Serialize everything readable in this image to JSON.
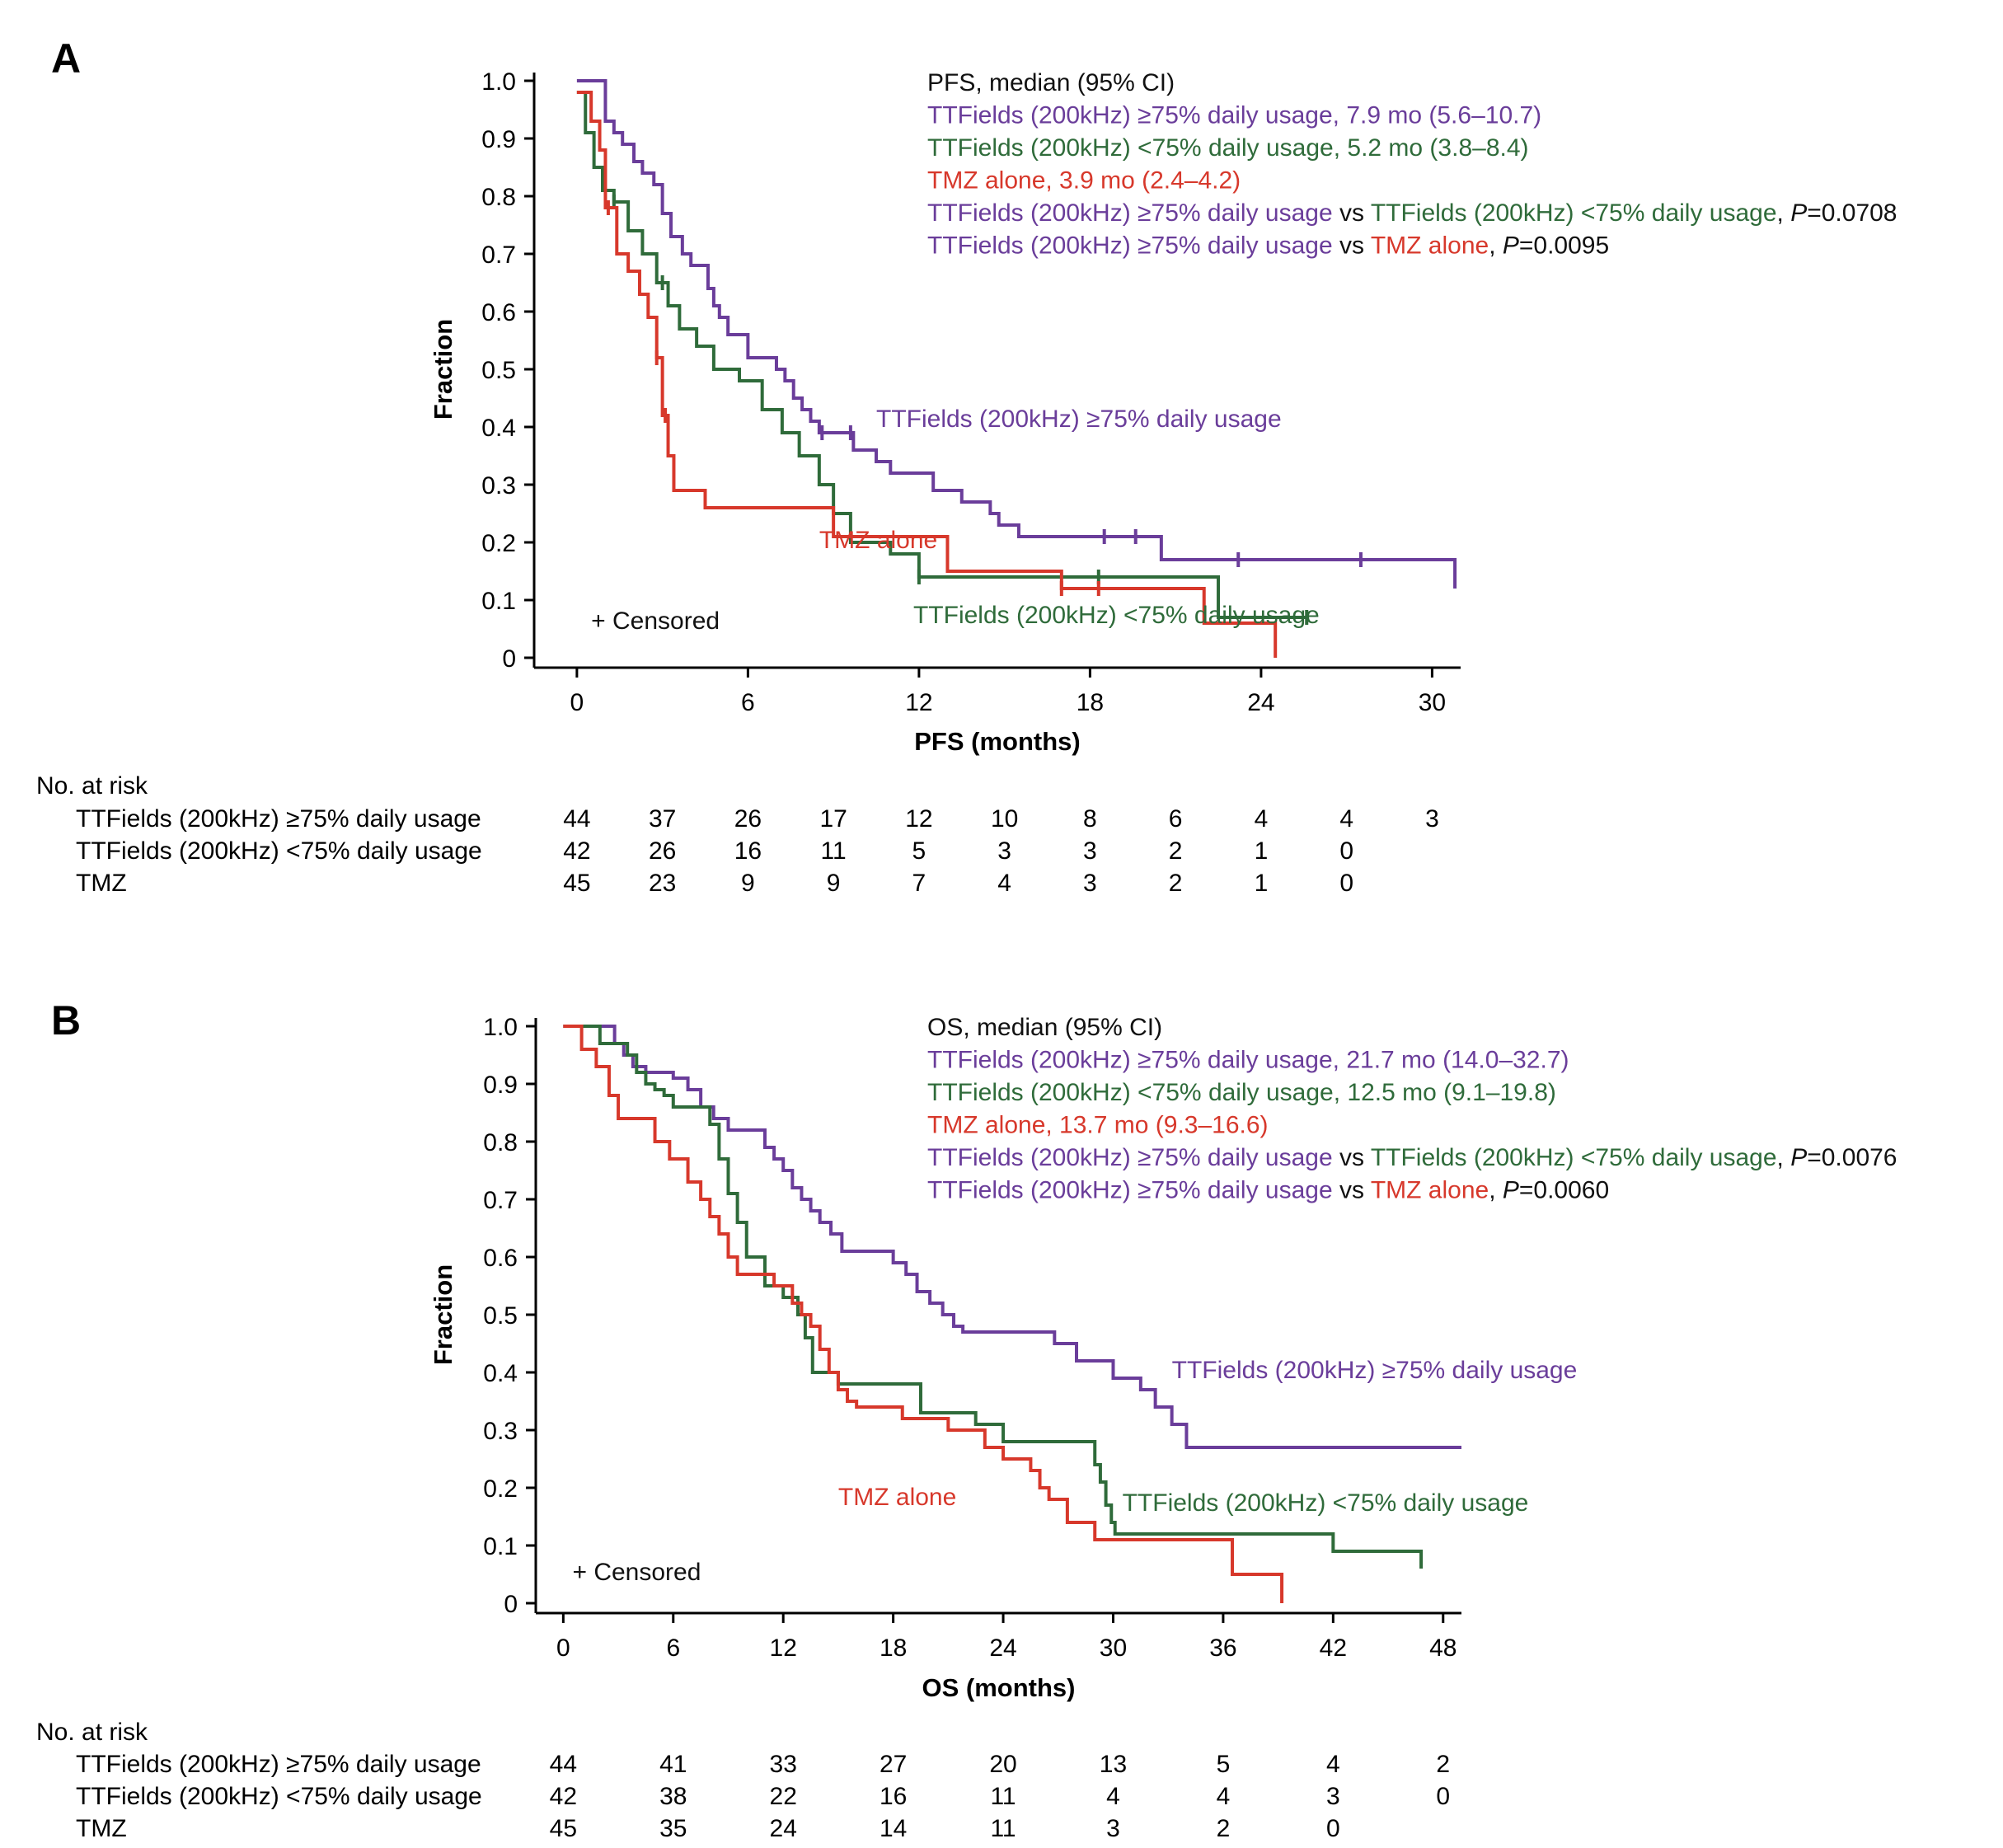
{
  "colors": {
    "purple": "#6a3d9a",
    "green": "#2f6b3a",
    "red": "#d7382b",
    "black": "#111111"
  },
  "chart_data": [
    {
      "panel": "A",
      "type": "line",
      "step": true,
      "xlabel": "PFS (months)",
      "ylabel": "Fraction",
      "xlim": [
        -1.5,
        31
      ],
      "ylim": [
        0,
        1.0
      ],
      "xticks": [
        0,
        6,
        12,
        18,
        24,
        30
      ],
      "yticks": [
        0,
        0.1,
        0.2,
        0.3,
        0.4,
        0.5,
        0.6,
        0.7,
        0.8,
        0.9,
        1.0
      ],
      "ytick_labels": [
        "0",
        "0.1",
        "0.2",
        "0.3",
        "0.4",
        "0.5",
        "0.6",
        "0.7",
        "0.8",
        "0.9",
        "1.0"
      ],
      "legend_lines": [
        [
          {
            "text": "PFS, median (95% CI)",
            "color": "black"
          }
        ],
        [
          {
            "text": "TTFields (200kHz) ≥75% daily usage, 7.9 mo (5.6–10.7)",
            "color": "purple"
          }
        ],
        [
          {
            "text": "TTFields (200kHz) <75% daily usage, 5.2 mo (3.8–8.4)",
            "color": "green"
          }
        ],
        [
          {
            "text": "TMZ alone, 3.9 mo (2.4–4.2)",
            "color": "red"
          }
        ],
        [
          {
            "text": "TTFields (200kHz) ≥75% daily usage",
            "color": "purple"
          },
          {
            "text": " vs ",
            "color": "black"
          },
          {
            "text": "TTFields (200kHz) <75% daily usage",
            "color": "green"
          },
          {
            "text": ", ",
            "color": "black"
          },
          {
            "text": "P",
            "color": "black",
            "italic": true
          },
          {
            "text": "=0.0708",
            "color": "black"
          }
        ],
        [
          {
            "text": "TTFields (200kHz) ≥75% daily usage",
            "color": "purple"
          },
          {
            "text": " vs ",
            "color": "black"
          },
          {
            "text": "TMZ alone",
            "color": "red"
          },
          {
            "text": ", ",
            "color": "black"
          },
          {
            "text": "P",
            "color": "black",
            "italic": true
          },
          {
            "text": "=0.0095",
            "color": "black"
          }
        ]
      ],
      "annotations": [
        {
          "text": "TTFields (200kHz) ≥75% daily usage",
          "color": "purple",
          "x": 10.5,
          "y": 0.4
        },
        {
          "text": "TMZ alone",
          "color": "red",
          "x": 8.5,
          "y": 0.19
        },
        {
          "text": "TTFields (200kHz) <75% daily usage",
          "color": "green",
          "x": 11.8,
          "y": 0.06
        },
        {
          "text": "+ Censored",
          "color": "black",
          "x": 0.5,
          "y": 0.05
        }
      ],
      "series": [
        {
          "name": "TTFields (200kHz) ≥75% daily usage",
          "color": "purple",
          "x": [
            0,
            1.0,
            1.3,
            1.6,
            2.0,
            2.3,
            2.7,
            3.0,
            3.3,
            3.7,
            4.0,
            4.6,
            4.8,
            5.0,
            5.3,
            6.0,
            7.0,
            7.3,
            7.6,
            7.9,
            8.2,
            8.5,
            9.7,
            10.5,
            11.0,
            12.5,
            13.5,
            14.5,
            14.8,
            15.5,
            18.5,
            19.5,
            20.5,
            23.0,
            27.5,
            30.8
          ],
          "y": [
            1.0,
            0.93,
            0.91,
            0.89,
            0.86,
            0.84,
            0.82,
            0.77,
            0.73,
            0.7,
            0.68,
            0.64,
            0.61,
            0.59,
            0.56,
            0.52,
            0.5,
            0.48,
            0.45,
            0.43,
            0.41,
            0.39,
            0.36,
            0.34,
            0.32,
            0.29,
            0.27,
            0.25,
            0.23,
            0.21,
            0.21,
            0.21,
            0.17,
            0.17,
            0.17,
            0.12
          ],
          "censor_x": [
            8.6,
            9.6,
            18.5,
            19.6,
            23.2,
            27.5
          ]
        },
        {
          "name": "TTFields (200kHz) <75% daily usage",
          "color": "green",
          "x": [
            0,
            0.3,
            0.6,
            0.9,
            1.3,
            1.8,
            2.3,
            2.8,
            3.2,
            3.6,
            4.2,
            4.8,
            5.7,
            6.5,
            7.2,
            7.8,
            8.5,
            9.0,
            9.6,
            11.0,
            12.0,
            22.5,
            25.6
          ],
          "y": [
            0.98,
            0.91,
            0.85,
            0.81,
            0.79,
            0.74,
            0.7,
            0.65,
            0.61,
            0.57,
            0.54,
            0.5,
            0.48,
            0.43,
            0.39,
            0.35,
            0.3,
            0.25,
            0.2,
            0.18,
            0.14,
            0.07,
            0.07
          ],
          "censor_x": [
            1.3,
            3.0,
            12.0,
            18.3,
            25.6
          ]
        },
        {
          "name": "TMZ alone",
          "color": "red",
          "x": [
            0,
            0.5,
            0.8,
            1.0,
            1.4,
            1.8,
            2.2,
            2.5,
            2.8,
            3.0,
            3.2,
            3.4,
            4.5,
            6.0,
            8.0,
            9.0,
            10.0,
            13.0,
            17.0,
            18.3,
            22.0,
            24.5
          ],
          "y": [
            0.98,
            0.93,
            0.88,
            0.78,
            0.7,
            0.67,
            0.63,
            0.59,
            0.52,
            0.42,
            0.35,
            0.29,
            0.26,
            0.26,
            0.26,
            0.21,
            0.21,
            0.15,
            0.12,
            0.12,
            0.06,
            0.0
          ],
          "censor_x": [
            1.1,
            2.8,
            3.1,
            17.0,
            18.3
          ]
        }
      ],
      "risk_table": {
        "title": "No. at risk",
        "x": [
          0,
          3,
          6,
          9,
          12,
          15,
          18,
          21,
          24,
          27,
          30
        ],
        "rows": [
          {
            "label": "TTFields (200kHz) ≥75% daily usage",
            "values": [
              "44",
              "37",
              "26",
              "17",
              "12",
              "10",
              "8",
              "6",
              "4",
              "4",
              "3"
            ]
          },
          {
            "label": "TTFields (200kHz) <75% daily usage",
            "values": [
              "42",
              "26",
              "16",
              "11",
              "5",
              "3",
              "3",
              "2",
              "1",
              "0"
            ]
          },
          {
            "label": "TMZ",
            "values": [
              "45",
              "23",
              "9",
              "9",
              "7",
              "4",
              "3",
              "2",
              "1",
              "0"
            ]
          }
        ]
      }
    },
    {
      "panel": "B",
      "type": "line",
      "step": true,
      "xlabel": "OS (months)",
      "ylabel": "Fraction",
      "xlim": [
        -1.5,
        49
      ],
      "ylim": [
        0,
        1.0
      ],
      "xticks": [
        0,
        6,
        12,
        18,
        24,
        30,
        36,
        42,
        48
      ],
      "yticks": [
        0,
        0.1,
        0.2,
        0.3,
        0.4,
        0.5,
        0.6,
        0.7,
        0.8,
        0.9,
        1.0
      ],
      "ytick_labels": [
        "0",
        "0.1",
        "0.2",
        "0.3",
        "0.4",
        "0.5",
        "0.6",
        "0.7",
        "0.8",
        "0.9",
        "1.0"
      ],
      "legend_lines": [
        [
          {
            "text": "OS, median (95% CI)",
            "color": "black"
          }
        ],
        [
          {
            "text": "TTFields (200kHz) ≥75% daily usage, 21.7 mo (14.0–32.7)",
            "color": "purple"
          }
        ],
        [
          {
            "text": "TTFields (200kHz) <75% daily usage, 12.5 mo (9.1–19.8)",
            "color": "green"
          }
        ],
        [
          {
            "text": "TMZ alone, 13.7 mo (9.3–16.6)",
            "color": "red"
          }
        ],
        [
          {
            "text": "TTFields (200kHz) ≥75% daily usage",
            "color": "purple"
          },
          {
            "text": " vs ",
            "color": "black"
          },
          {
            "text": "TTFields (200kHz) <75% daily usage",
            "color": "green"
          },
          {
            "text": ", ",
            "color": "black"
          },
          {
            "text": "P",
            "color": "black",
            "italic": true
          },
          {
            "text": "=0.0076",
            "color": "black"
          }
        ],
        [
          {
            "text": "TTFields (200kHz) ≥75% daily usage",
            "color": "purple"
          },
          {
            "text": " vs ",
            "color": "black"
          },
          {
            "text": "TMZ alone",
            "color": "red"
          },
          {
            "text": ", ",
            "color": "black"
          },
          {
            "text": "P",
            "color": "black",
            "italic": true
          },
          {
            "text": "=0.0060",
            "color": "black"
          }
        ]
      ],
      "annotations": [
        {
          "text": "TTFields (200kHz) ≥75% daily usage",
          "color": "purple",
          "x": 33.2,
          "y": 0.39
        },
        {
          "text": "TMZ alone",
          "color": "red",
          "x": 15.0,
          "y": 0.17
        },
        {
          "text": "TTFields (200kHz) <75% daily usage",
          "color": "green",
          "x": 30.5,
          "y": 0.16
        },
        {
          "text": "+ Censored",
          "color": "black",
          "x": 0.5,
          "y": 0.04
        }
      ],
      "series": [
        {
          "name": "TTFields (200kHz) ≥75% daily usage",
          "color": "purple",
          "x": [
            0,
            2.8,
            3.3,
            3.8,
            4.5,
            6.0,
            6.8,
            7.5,
            8.2,
            9.0,
            11.0,
            11.5,
            12.0,
            12.5,
            13.0,
            13.5,
            14.0,
            14.6,
            15.2,
            18.0,
            18.7,
            19.3,
            20.0,
            20.7,
            21.3,
            21.8,
            24.0,
            26.8,
            28.0,
            30.0,
            31.5,
            32.3,
            33.2,
            34.0,
            49.0
          ],
          "y": [
            1.0,
            0.97,
            0.95,
            0.93,
            0.92,
            0.91,
            0.89,
            0.86,
            0.84,
            0.82,
            0.79,
            0.77,
            0.75,
            0.72,
            0.7,
            0.68,
            0.66,
            0.64,
            0.61,
            0.59,
            0.57,
            0.54,
            0.52,
            0.5,
            0.48,
            0.47,
            0.47,
            0.45,
            0.42,
            0.39,
            0.37,
            0.34,
            0.31,
            0.27,
            0.27
          ],
          "censor_x": []
        },
        {
          "name": "TTFields (200kHz) <75% daily usage",
          "color": "green",
          "x": [
            0,
            2.0,
            3.5,
            4.0,
            4.5,
            5.0,
            5.5,
            6.0,
            8.0,
            8.5,
            9.0,
            9.5,
            10.0,
            11.0,
            12.0,
            12.8,
            13.2,
            13.6,
            15.0,
            19.5,
            22.5,
            24.0,
            29.0,
            29.3,
            29.6,
            29.9,
            30.1,
            38.0,
            42.0,
            46.8
          ],
          "y": [
            1.0,
            0.97,
            0.95,
            0.92,
            0.9,
            0.89,
            0.88,
            0.86,
            0.83,
            0.77,
            0.71,
            0.66,
            0.6,
            0.55,
            0.53,
            0.5,
            0.46,
            0.4,
            0.38,
            0.33,
            0.31,
            0.28,
            0.24,
            0.21,
            0.17,
            0.14,
            0.12,
            0.12,
            0.09,
            0.06
          ],
          "censor_x": []
        },
        {
          "name": "TMZ alone",
          "color": "red",
          "x": [
            0,
            1.0,
            1.8,
            2.5,
            3.0,
            5.0,
            5.8,
            6.8,
            7.5,
            8.0,
            8.5,
            9.0,
            9.5,
            10.0,
            11.5,
            12.5,
            13.0,
            13.5,
            14.0,
            14.5,
            15.0,
            15.5,
            16.0,
            18.5,
            21.0,
            23.0,
            24.0,
            25.5,
            26.0,
            26.5,
            27.5,
            29.0,
            36.5,
            39.2
          ],
          "y": [
            1.0,
            0.96,
            0.93,
            0.88,
            0.84,
            0.8,
            0.77,
            0.73,
            0.7,
            0.67,
            0.64,
            0.6,
            0.57,
            0.57,
            0.55,
            0.52,
            0.5,
            0.48,
            0.44,
            0.4,
            0.37,
            0.35,
            0.34,
            0.32,
            0.3,
            0.27,
            0.25,
            0.23,
            0.2,
            0.18,
            0.14,
            0.11,
            0.05,
            0.0
          ],
          "censor_x": []
        }
      ],
      "risk_table": {
        "title": "No. at risk",
        "x": [
          0,
          6,
          12,
          18,
          24,
          30,
          36,
          42,
          48
        ],
        "rows": [
          {
            "label": "TTFields (200kHz) ≥75% daily usage",
            "values": [
              "44",
              "41",
              "33",
              "27",
              "20",
              "13",
              "5",
              "4",
              "2"
            ]
          },
          {
            "label": "TTFields (200kHz) <75% daily usage",
            "values": [
              "42",
              "38",
              "22",
              "16",
              "11",
              "4",
              "4",
              "3",
              "0"
            ]
          },
          {
            "label": "TMZ",
            "values": [
              "45",
              "35",
              "24",
              "14",
              "11",
              "3",
              "2",
              "0"
            ]
          }
        ]
      }
    }
  ]
}
